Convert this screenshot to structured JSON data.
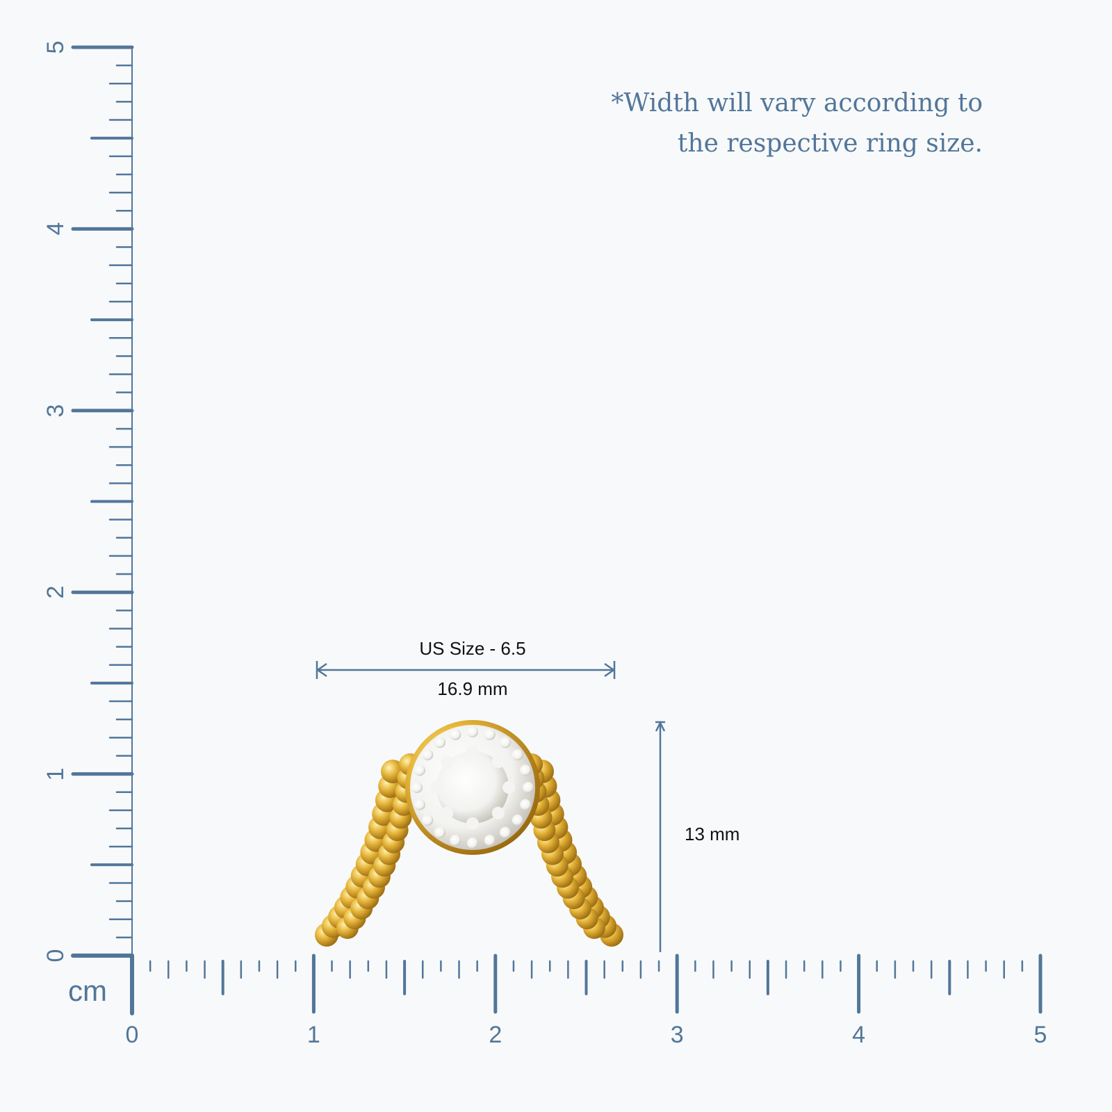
{
  "note": {
    "line1": "*Width will vary according to",
    "line2": "the respective ring size."
  },
  "ruler": {
    "unit": "cm",
    "x_labels": [
      "0",
      "1",
      "2",
      "3",
      "4",
      "5"
    ],
    "y_labels": [
      "0",
      "1",
      "2",
      "3",
      "4",
      "5"
    ],
    "color": "#52769a"
  },
  "dimensions": {
    "size_label": "US Size - 6.5",
    "width_label": "16.9 mm",
    "height_label": "13 mm"
  },
  "product": {
    "metal_color": "#e6b53a",
    "stone_color": "#f2f2f0"
  }
}
